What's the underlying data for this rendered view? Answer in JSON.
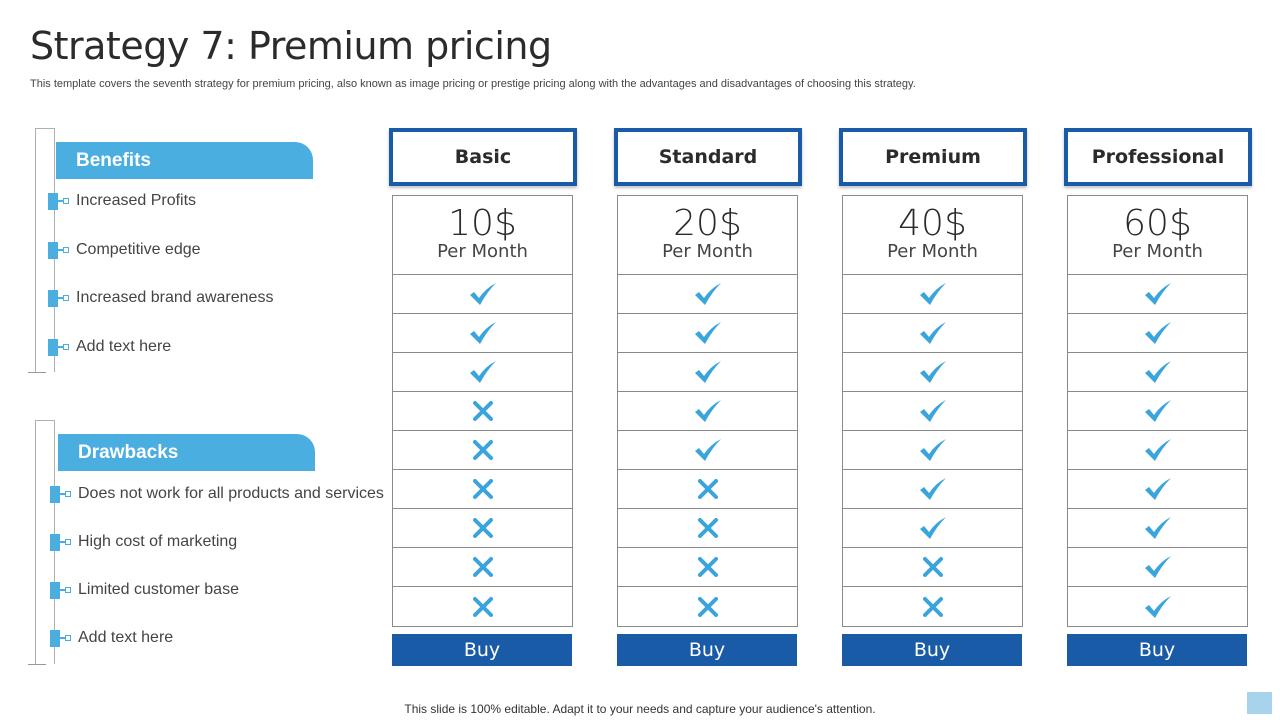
{
  "header": {
    "title": "Strategy 7: Premium pricing",
    "subtitle": "This template covers the seventh strategy for premium pricing, also known as image pricing or prestige pricing along with the advantages and disadvantages of choosing this strategy."
  },
  "benefits": {
    "title": "Benefits",
    "items": [
      "Increased Profits",
      "Competitive edge",
      "Increased brand awareness",
      "Add text here"
    ]
  },
  "drawbacks": {
    "title": "Drawbacks",
    "items": [
      "Does not work for all products and services",
      "High cost of marketing",
      "Limited customer base",
      "Add text here"
    ]
  },
  "plans": [
    {
      "name": "Basic",
      "price": "10$",
      "period": "Per Month",
      "buy_label": "Buy",
      "features": [
        true,
        true,
        true,
        false,
        false,
        false,
        false,
        false,
        false
      ]
    },
    {
      "name": "Standard",
      "price": "20$",
      "period": "Per Month",
      "buy_label": "Buy",
      "features": [
        true,
        true,
        true,
        true,
        true,
        false,
        false,
        false,
        false
      ]
    },
    {
      "name": "Premium",
      "price": "40$",
      "period": "Per Month",
      "buy_label": "Buy",
      "features": [
        true,
        true,
        true,
        true,
        true,
        true,
        true,
        false,
        false
      ]
    },
    {
      "name": "Professional",
      "price": "60$",
      "period": "Per Month",
      "buy_label": "Buy",
      "features": [
        true,
        true,
        true,
        true,
        true,
        true,
        true,
        true,
        true
      ]
    }
  ],
  "footer": {
    "note": "This slide is 100% editable. Adapt it to your needs and capture your audience's attention."
  },
  "colors": {
    "accent_light": "#4baee0",
    "accent_dark": "#1a5ba8",
    "check": "#3aa4dc",
    "cross": "#3aa4dc"
  },
  "icons": {
    "included": "check-icon",
    "excluded": "cross-icon"
  }
}
